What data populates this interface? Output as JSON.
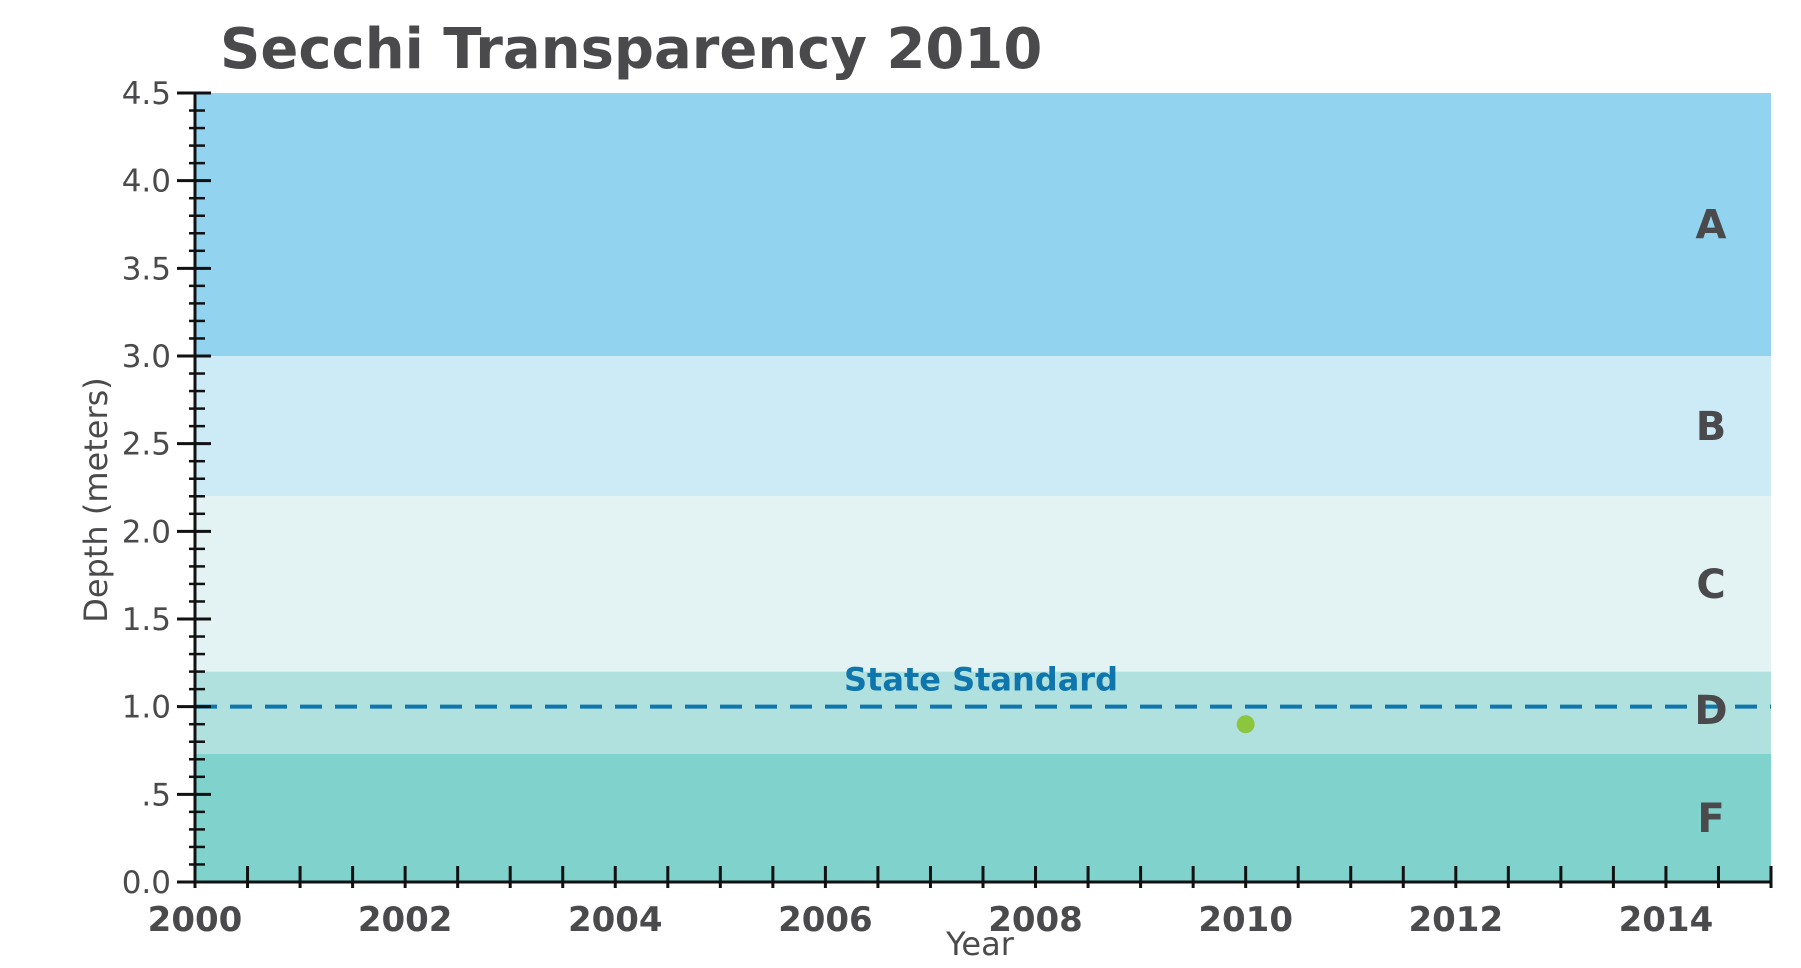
{
  "chart_data": {
    "type": "scatter",
    "title": "Secchi Transparency 2010",
    "xlabel": "Year",
    "ylabel": "Depth (meters)",
    "xlim": [
      2000,
      2015
    ],
    "ylim": [
      0,
      4.5
    ],
    "x_ticks": [
      2000,
      2002,
      2004,
      2006,
      2008,
      2010,
      2012,
      2014
    ],
    "x_tick_labels": [
      "2000",
      "2002",
      "2004",
      "2006",
      "2008",
      "2010",
      "2012",
      "2014"
    ],
    "y_ticks": [
      0,
      0.5,
      1.0,
      1.5,
      2.0,
      2.5,
      3.0,
      3.5,
      4.0,
      4.5
    ],
    "y_tick_labels": [
      "0.0",
      ".5",
      "1.0",
      "1.5",
      "2.0",
      "2.5",
      "3.0",
      "3.5",
      "4.0",
      "4.5"
    ],
    "grid": false,
    "series": [
      {
        "name": "Secchi depth",
        "color": "#8cc63f",
        "points": [
          {
            "x": 2010,
            "y": 0.9
          }
        ]
      }
    ],
    "grade_bands": [
      {
        "label": "A",
        "from": 3.0,
        "to": 4.5,
        "color": "#92d3ef"
      },
      {
        "label": "B",
        "from": 2.2,
        "to": 3.0,
        "color": "#cdebf7"
      },
      {
        "label": "C",
        "from": 1.2,
        "to": 2.2,
        "color": "#e3f3f3"
      },
      {
        "label": "D",
        "from": 0.73,
        "to": 1.2,
        "color": "#b1e1de"
      },
      {
        "label": "F",
        "from": 0.0,
        "to": 0.73,
        "color": "#80d2cd"
      }
    ],
    "reference_line": {
      "label": "State Standard",
      "y": 1.0,
      "color": "#0f75ad",
      "style": "dashed"
    }
  }
}
